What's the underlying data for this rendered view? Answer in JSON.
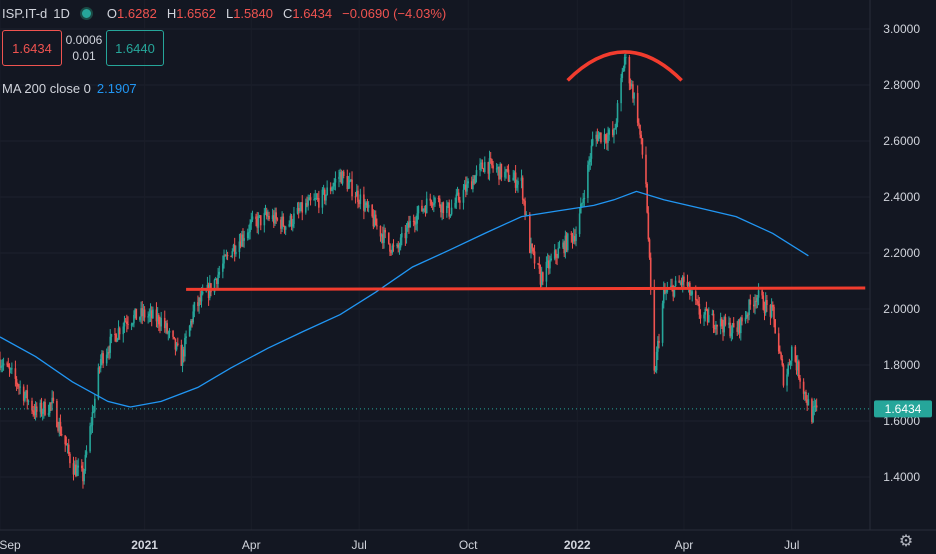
{
  "legend": {
    "symbol": "ISP.IT-d",
    "interval": "1D",
    "open_label": "O",
    "open": "1.6282",
    "high_label": "H",
    "high": "1.6562",
    "low_label": "L",
    "low": "1.5840",
    "close_label": "C",
    "close": "1.6434",
    "change": "−0.0690 (−4.03%)"
  },
  "trade": {
    "sell": "1.6434",
    "spread_top": "0.0006",
    "spread_bottom": "0.01",
    "buy": "1.6440"
  },
  "indicator": {
    "label": "MA 200 close 0",
    "value": "2.1907"
  },
  "price_tag": "1.6434",
  "colors": {
    "up": "#26a69a",
    "down": "#ef5350",
    "ma": "#2196f3",
    "annotation": "#f23c2e",
    "background": "#131722"
  },
  "icons": {
    "settings": "gear-icon",
    "status": "status-dot-icon"
  },
  "chart_data": {
    "type": "candlestick",
    "y_ticks": [
      "3.0000",
      "2.8000",
      "2.6000",
      "2.4000",
      "2.2000",
      "2.0000",
      "1.8000",
      "1.6000",
      "1.4000"
    ],
    "x_ticks": [
      "Sep",
      "2021",
      "Apr",
      "Jul",
      "Oct",
      "2022",
      "Apr",
      "Jul"
    ],
    "ylim": [
      1.25,
      3.05
    ],
    "x_range": [
      "2020-09-01",
      "2022-09-05"
    ],
    "last_price": 1.6434,
    "ma200": [
      [
        "2020-09-01",
        1.9
      ],
      [
        "2020-10-01",
        1.83
      ],
      [
        "2020-11-01",
        1.74
      ],
      [
        "2020-12-01",
        1.67
      ],
      [
        "2020-12-20",
        1.65
      ],
      [
        "2021-01-15",
        1.67
      ],
      [
        "2021-02-15",
        1.72
      ],
      [
        "2021-03-15",
        1.79
      ],
      [
        "2021-04-15",
        1.86
      ],
      [
        "2021-05-15",
        1.92
      ],
      [
        "2021-06-15",
        1.98
      ],
      [
        "2021-07-15",
        2.06
      ],
      [
        "2021-08-15",
        2.15
      ],
      [
        "2021-09-15",
        2.21
      ],
      [
        "2021-10-15",
        2.27
      ],
      [
        "2021-11-15",
        2.33
      ],
      [
        "2021-12-15",
        2.35
      ],
      [
        "2022-01-15",
        2.37
      ],
      [
        "2022-02-01",
        2.39
      ],
      [
        "2022-02-20",
        2.42
      ],
      [
        "2022-03-15",
        2.39
      ],
      [
        "2022-04-15",
        2.36
      ],
      [
        "2022-05-15",
        2.33
      ],
      [
        "2022-06-15",
        2.27
      ],
      [
        "2022-07-15",
        2.19
      ]
    ],
    "price_path": [
      [
        "2020-09-01",
        1.82
      ],
      [
        "2020-09-15",
        1.74
      ],
      [
        "2020-10-01",
        1.63
      ],
      [
        "2020-10-15",
        1.66
      ],
      [
        "2020-11-01",
        1.44
      ],
      [
        "2020-11-10",
        1.4
      ],
      [
        "2020-11-25",
        1.82
      ],
      [
        "2020-12-15",
        1.96
      ],
      [
        "2020-12-31",
        1.98
      ],
      [
        "2021-01-15",
        1.96
      ],
      [
        "2021-02-01",
        1.82
      ],
      [
        "2021-02-12",
        2.0
      ],
      [
        "2021-02-25",
        2.07
      ],
      [
        "2021-03-15",
        2.21
      ],
      [
        "2021-04-01",
        2.3
      ],
      [
        "2021-04-15",
        2.33
      ],
      [
        "2021-05-01",
        2.3
      ],
      [
        "2021-05-15",
        2.36
      ],
      [
        "2021-06-01",
        2.4
      ],
      [
        "2021-06-15",
        2.48
      ],
      [
        "2021-07-01",
        2.4
      ],
      [
        "2021-07-15",
        2.3
      ],
      [
        "2021-08-01",
        2.2
      ],
      [
        "2021-08-15",
        2.32
      ],
      [
        "2021-09-01",
        2.4
      ],
      [
        "2021-09-15",
        2.35
      ],
      [
        "2021-10-01",
        2.44
      ],
      [
        "2021-10-15",
        2.52
      ],
      [
        "2021-11-01",
        2.48
      ],
      [
        "2021-11-15",
        2.45
      ],
      [
        "2021-11-22",
        2.22
      ],
      [
        "2021-12-01",
        2.11
      ],
      [
        "2021-12-15",
        2.2
      ],
      [
        "2022-01-01",
        2.28
      ],
      [
        "2022-01-15",
        2.62
      ],
      [
        "2022-02-01",
        2.62
      ],
      [
        "2022-02-10",
        2.9
      ],
      [
        "2022-02-20",
        2.72
      ],
      [
        "2022-02-28",
        2.45
      ],
      [
        "2022-03-07",
        1.76
      ],
      [
        "2022-03-15",
        2.05
      ],
      [
        "2022-04-01",
        2.1
      ],
      [
        "2022-04-15",
        1.98
      ],
      [
        "2022-05-01",
        1.95
      ],
      [
        "2022-05-15",
        1.92
      ],
      [
        "2022-06-01",
        2.05
      ],
      [
        "2022-06-15",
        1.98
      ],
      [
        "2022-06-25",
        1.73
      ],
      [
        "2022-07-01",
        1.86
      ],
      [
        "2022-07-12",
        1.7
      ],
      [
        "2022-07-18",
        1.62
      ],
      [
        "2022-07-22",
        1.64
      ]
    ],
    "annotations": [
      {
        "type": "horizontal-line",
        "y": 2.07,
        "from": "2021-02-05",
        "to": "2022-09-01"
      },
      {
        "type": "arc",
        "peak_date": "2022-02-10",
        "peak_price": 2.92
      }
    ]
  }
}
